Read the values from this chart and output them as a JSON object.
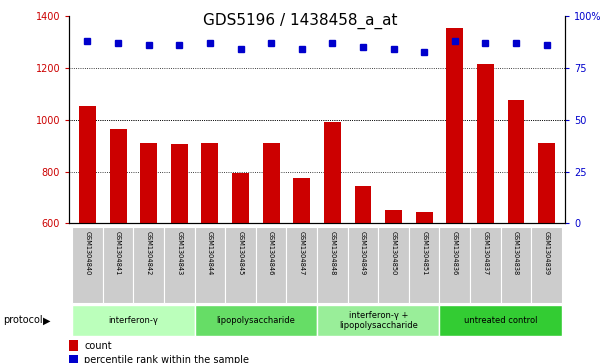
{
  "title": "GDS5196 / 1438458_a_at",
  "samples": [
    "GSM1304840",
    "GSM1304841",
    "GSM1304842",
    "GSM1304843",
    "GSM1304844",
    "GSM1304845",
    "GSM1304846",
    "GSM1304847",
    "GSM1304848",
    "GSM1304849",
    "GSM1304850",
    "GSM1304851",
    "GSM1304836",
    "GSM1304837",
    "GSM1304838",
    "GSM1304839"
  ],
  "counts": [
    1055,
    965,
    910,
    905,
    910,
    795,
    910,
    775,
    990,
    745,
    650,
    645,
    1355,
    1215,
    1075,
    910
  ],
  "percentile_ranks": [
    88,
    87,
    86,
    86,
    87,
    84,
    87,
    84,
    87,
    85,
    84,
    83,
    88,
    87,
    87,
    86
  ],
  "groups": [
    {
      "label": "interferon-γ",
      "start": 0,
      "end": 4,
      "color": "#bbffbb"
    },
    {
      "label": "lipopolysaccharide",
      "start": 4,
      "end": 8,
      "color": "#66dd66"
    },
    {
      "label": "interferon-γ +\nlipopolysaccharide",
      "start": 8,
      "end": 12,
      "color": "#99ee99"
    },
    {
      "label": "untreated control",
      "start": 12,
      "end": 16,
      "color": "#33cc33"
    }
  ],
  "bar_color": "#cc0000",
  "dot_color": "#0000cc",
  "ylim_left": [
    600,
    1400
  ],
  "ylim_right": [
    0,
    100
  ],
  "yticks_left": [
    600,
    800,
    1000,
    1200,
    1400
  ],
  "yticks_right": [
    0,
    25,
    50,
    75,
    100
  ],
  "grid_values": [
    800,
    1000,
    1200
  ],
  "tick_label_bg": "#cccccc",
  "title_fontsize": 11,
  "legend_count_label": "count",
  "legend_percentile_label": "percentile rank within the sample",
  "protocol_label": "protocol"
}
